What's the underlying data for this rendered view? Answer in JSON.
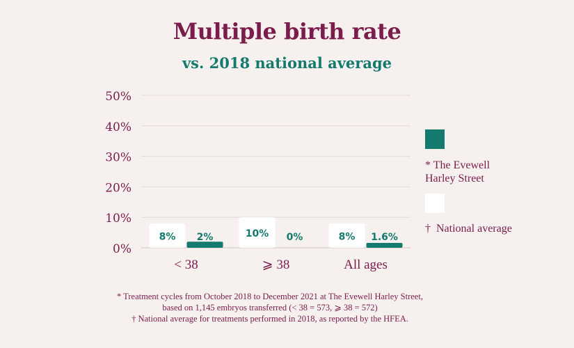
{
  "title": "Multiple birth rate",
  "subtitle": "vs. 2018 national average",
  "colors": {
    "background": "#f6f0ee",
    "clinic": "#137a6d",
    "national": "#ffffff",
    "text_primary": "#7b1c4c",
    "text_secondary": "#137a6d",
    "grid": "#e6d9d7"
  },
  "chart_data": {
    "type": "bar",
    "title": "Multiple birth rate",
    "subtitle": "vs. 2018 national average",
    "categories": [
      "< 38",
      "⩾ 38",
      "All ages"
    ],
    "series": [
      {
        "name": "National average",
        "values": [
          8,
          10,
          8
        ],
        "labels": [
          "8%",
          "10%",
          "8%"
        ],
        "color": "#ffffff"
      },
      {
        "name": "The Evewell Harley Street",
        "values": [
          2,
          0,
          1.6
        ],
        "labels": [
          "2%",
          "0%",
          "1.6%"
        ],
        "color": "#137a6d"
      }
    ],
    "ylim": [
      0,
      50
    ],
    "yticks": [
      0,
      10,
      20,
      30,
      40,
      50
    ],
    "ytick_labels": [
      "0%",
      "10%",
      "20%",
      "30%",
      "40%",
      "50%"
    ],
    "xlabel": "",
    "ylabel": "",
    "grid": true,
    "legend_position": "right"
  },
  "legend": {
    "clinic_marker": "*",
    "clinic_line1": "The Evewell",
    "clinic_line2": "Harley Street",
    "national_marker": "†",
    "national_label": "National average"
  },
  "footnotes": [
    "* Treatment cycles from October 2018 to December 2021 at The Evewell Harley Street,",
    "based on 1,145 embryos transferred (< 38 = 573, ⩾ 38 = 572)",
    "† National average for treatments performed in 2018, as reported by the HFEA."
  ]
}
